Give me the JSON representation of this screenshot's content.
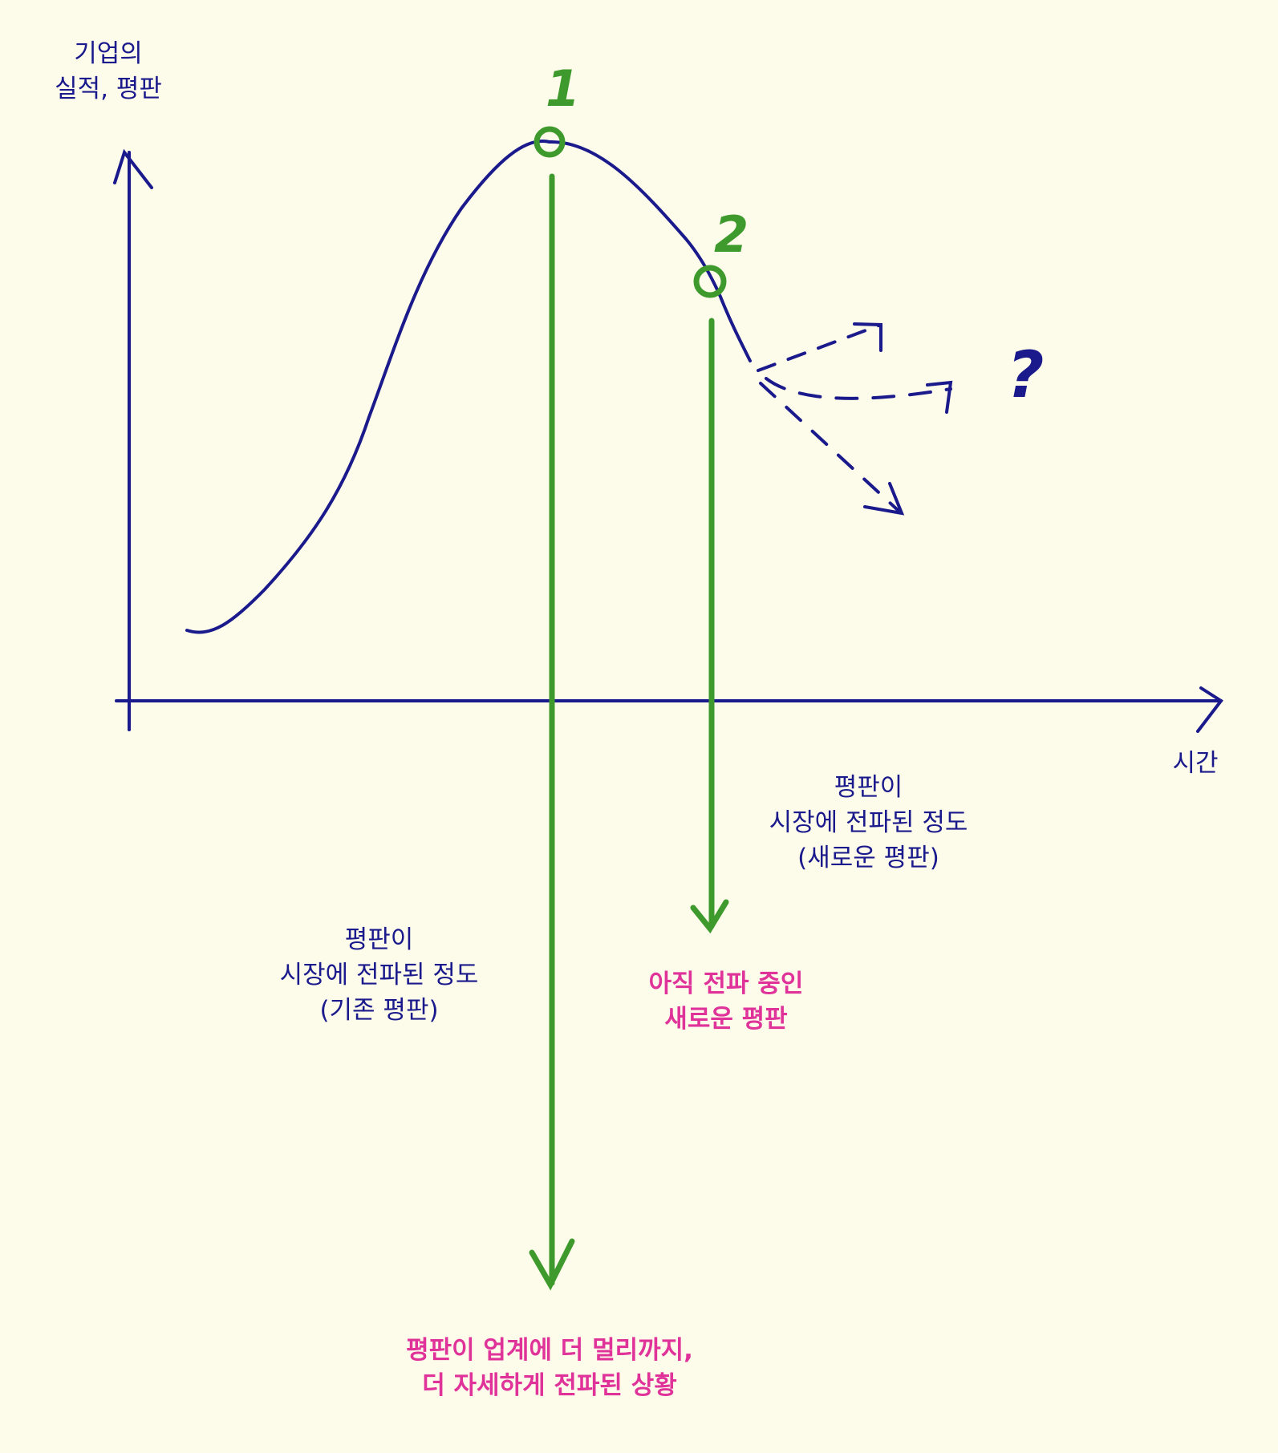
{
  "colors": {
    "background": "#fdfbea",
    "ink_blue": "#1a1a8c",
    "green": "#3e9a2c",
    "pink": "#e0339a"
  },
  "y_axis_label": [
    "기업의",
    "실적, 평판"
  ],
  "x_axis_label": "시간",
  "markers": [
    {
      "id": "1",
      "label": "1",
      "glyph": "1"
    },
    {
      "id": "2",
      "label": "2",
      "glyph": "2"
    }
  ],
  "question_mark": "?",
  "annotation_new": [
    "평판이",
    "시장에 전파된 정도",
    "(새로운 평판)"
  ],
  "annotation_old": [
    "평판이",
    "시장에 전파된 정도",
    "(기존 평판)"
  ],
  "highlight_new": [
    "아직 전파 중인",
    "새로운 평판"
  ],
  "highlight_old": [
    "평판이 업계에 더 멀리까지,",
    "더 자세하게 전파된 상황"
  ]
}
